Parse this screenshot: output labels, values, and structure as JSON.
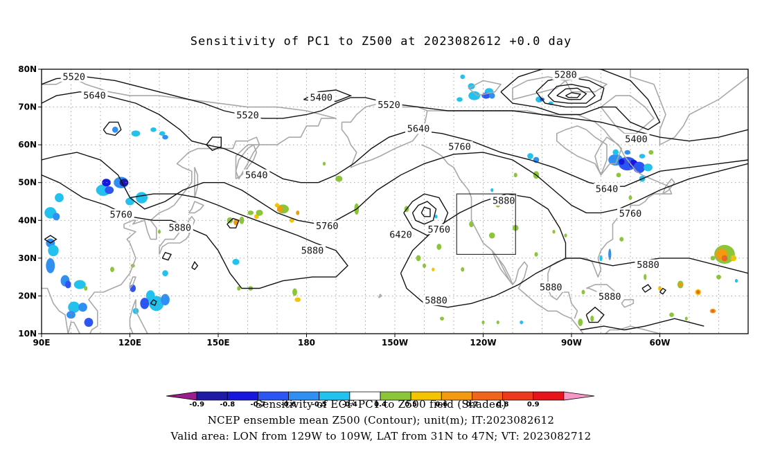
{
  "title": "Sensitivity of PC1 to Z500 at 2023082612 +0.0 day",
  "map": {
    "lon_labels": [
      {
        "lon": 90,
        "text": "90E"
      },
      {
        "lon": 120,
        "text": "120E"
      },
      {
        "lon": 150,
        "text": "150E"
      },
      {
        "lon": 180,
        "text": "180"
      },
      {
        "lon": 210,
        "text": "150W"
      },
      {
        "lon": 240,
        "text": "120W"
      },
      {
        "lon": 270,
        "text": "90W"
      },
      {
        "lon": 300,
        "text": "60W"
      }
    ],
    "lat_labels": [
      {
        "lat": 80,
        "text": "80N"
      },
      {
        "lat": 70,
        "text": "70N"
      },
      {
        "lat": 60,
        "text": "60N"
      },
      {
        "lat": 50,
        "text": "50N"
      },
      {
        "lat": 40,
        "text": "40N"
      },
      {
        "lat": 30,
        "text": "30N"
      },
      {
        "lat": 20,
        "text": "20N"
      },
      {
        "lat": 10,
        "text": "10N"
      }
    ],
    "valid_area_box": {
      "lon_min": 231,
      "lon_max": 251,
      "lat_min": 31,
      "lat_max": 47
    },
    "contour_labels": [
      {
        "text": "5520",
        "lon": 101,
        "lat": 78.0
      },
      {
        "text": "5640",
        "lon": 108,
        "lat": 73.0
      },
      {
        "text": "5520",
        "lon": 160,
        "lat": 67.8
      },
      {
        "text": "5400",
        "lon": 185,
        "lat": 72.5
      },
      {
        "text": "5280",
        "lon": 268,
        "lat": 78.5
      },
      {
        "text": "5520",
        "lon": 208,
        "lat": 70.6
      },
      {
        "text": "5640",
        "lon": 218,
        "lat": 64.2
      },
      {
        "text": "5760",
        "lon": 232,
        "lat": 59.5
      },
      {
        "text": "5400",
        "lon": 292,
        "lat": 61.5
      },
      {
        "text": "5640",
        "lon": 163,
        "lat": 52.0
      },
      {
        "text": "5640",
        "lon": 282,
        "lat": 48.3
      },
      {
        "text": "5760",
        "lon": 290,
        "lat": 41.8
      },
      {
        "text": "5880",
        "lon": 247,
        "lat": 45.2
      },
      {
        "text": "6420",
        "lon": 212,
        "lat": 36.2
      },
      {
        "text": "5760",
        "lon": 225,
        "lat": 37.6
      },
      {
        "text": "5760",
        "lon": 117,
        "lat": 41.5
      },
      {
        "text": "5880",
        "lon": 137,
        "lat": 38.0
      },
      {
        "text": "5760",
        "lon": 187,
        "lat": 38.5
      },
      {
        "text": "5880",
        "lon": 182,
        "lat": 32.0
      },
      {
        "text": "5880",
        "lon": 296,
        "lat": 28.2
      },
      {
        "text": "5880",
        "lon": 263,
        "lat": 22.3
      },
      {
        "text": "5880",
        "lon": 283,
        "lat": 19.8
      },
      {
        "text": "5880",
        "lon": 224,
        "lat": 18.8
      }
    ]
  },
  "colorbar": {
    "colors": [
      "#9b1c8c",
      "#1e1aa6",
      "#1616de",
      "#2d55f2",
      "#2f8ff2",
      "#22c1ee",
      "#ffffff",
      "#8dc53a",
      "#f5c400",
      "#f39a10",
      "#f0641b",
      "#ee3a1c",
      "#e8141c",
      "#f598c8"
    ],
    "labels": [
      "-0.9",
      "-0.8",
      "-0.7",
      "-0.6",
      "-0.5",
      "-0.4",
      "0.4",
      "0.5",
      "0.6",
      "0.7",
      "0.8",
      "0.9"
    ]
  },
  "captions": {
    "line1": "Sensitivity of EOF PC1 to Z500 field (Shaded)",
    "line2": "NCEP ensemble mean Z500 (Contour); unit(m); IT:2023082612",
    "line3": "Valid area: LON from 129W to 109W, LAT from 31N to 47N; VT: 2023082712"
  }
}
